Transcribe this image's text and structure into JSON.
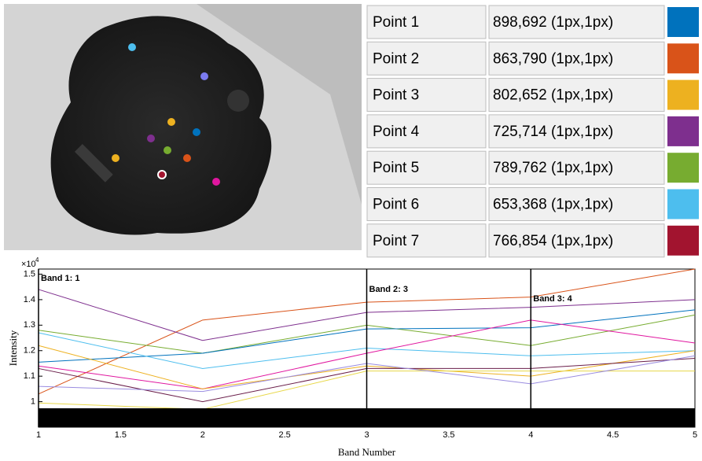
{
  "table": {
    "rows": [
      {
        "label": "Point 1",
        "coords": "898,692 (1px,1px)",
        "color": "#0072BD"
      },
      {
        "label": "Point 2",
        "coords": "863,790 (1px,1px)",
        "color": "#D95319"
      },
      {
        "label": "Point 3",
        "coords": "802,652 (1px,1px)",
        "color": "#EDB120"
      },
      {
        "label": "Point 4",
        "coords": "725,714 (1px,1px)",
        "color": "#7E2F8E"
      },
      {
        "label": "Point 5",
        "coords": "789,762 (1px,1px)",
        "color": "#77AC30"
      },
      {
        "label": "Point 6",
        "coords": "653,368 (1px,1px)",
        "color": "#4DBEEE"
      },
      {
        "label": "Point 7",
        "coords": "766,854 (1px,1px)",
        "color": "#A2142F"
      }
    ]
  },
  "chart_data": {
    "type": "line",
    "x_label": "Band Number",
    "y_label": "Intensity",
    "y_multiplier": {
      "base": "×10",
      "exponent": "4"
    },
    "x": [
      1,
      2,
      3,
      4,
      5
    ],
    "series": [
      {
        "color": "#D95319",
        "values": [
          1.03,
          1.32,
          1.39,
          1.41,
          1.52
        ]
      },
      {
        "color": "#7E2F8E",
        "values": [
          1.44,
          1.24,
          1.35,
          1.37,
          1.4
        ]
      },
      {
        "color": "#77AC30",
        "values": [
          1.28,
          1.19,
          1.3,
          1.22,
          1.34
        ]
      },
      {
        "color": "#0072BD",
        "values": [
          1.155,
          1.19,
          1.285,
          1.29,
          1.36
        ]
      },
      {
        "color": "#4DBEEE",
        "values": [
          1.27,
          1.13,
          1.21,
          1.18,
          1.2
        ]
      },
      {
        "color": "#E0169F",
        "values": [
          1.14,
          1.05,
          1.19,
          1.32,
          1.23
        ]
      },
      {
        "color": "#EDB120",
        "values": [
          1.22,
          1.05,
          1.14,
          1.1,
          1.2
        ]
      },
      {
        "color": "#E8D84A",
        "values": [
          0.995,
          0.97,
          1.12,
          1.12,
          1.12
        ]
      },
      {
        "color": "#6A1E4A",
        "values": [
          1.13,
          1.0,
          1.13,
          1.13,
          1.17
        ]
      },
      {
        "color": "#9A8CE0",
        "values": [
          1.06,
          1.04,
          1.15,
          1.07,
          1.18
        ]
      }
    ],
    "band_lines": [
      1,
      3,
      4
    ],
    "annotations": [
      "Band 1: 1",
      "Band 2: 3",
      "Band 3: 4"
    ],
    "xlim": [
      1,
      5
    ],
    "ylim": [
      0.9,
      1.52
    ],
    "xticks": [
      1,
      1.5,
      2,
      2.5,
      3,
      3.5,
      4,
      4.5,
      5
    ],
    "yticks": [
      1,
      1.1,
      1.2,
      1.3,
      1.4,
      1.5
    ]
  }
}
